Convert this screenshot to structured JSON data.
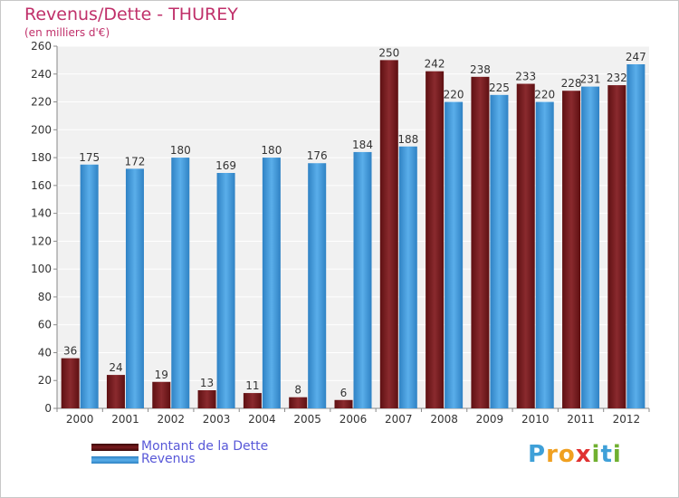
{
  "title": "Revenus/Dette - THUREY",
  "subtitle": "(en milliers d'€)",
  "legend": {
    "items": [
      {
        "label": "Montant de la Dette",
        "color": "#7a1b1f"
      },
      {
        "label": "Revenus",
        "color": "#3a95d8"
      }
    ],
    "placement": "bottom-left"
  },
  "logo": {
    "letters": [
      "P",
      "r",
      "o",
      "x",
      "i",
      "t",
      "i"
    ],
    "colors": [
      "#3fa0d8",
      "#f0a020",
      "#f0a020",
      "#e03030",
      "#70b030",
      "#3fa0d8",
      "#70b030"
    ]
  },
  "colors": {
    "dette": "#7a1b1f",
    "revenus": "#3a95d8",
    "plot_bg": "#f1f1f1",
    "grid": "#ffffff",
    "text_accent": "#c0306a"
  },
  "chart_data": {
    "type": "bar",
    "title": "Revenus/Dette - THUREY",
    "ylabel": "(en milliers d'€)",
    "categories": [
      "2000",
      "2001",
      "2002",
      "2003",
      "2004",
      "2005",
      "2006",
      "2007",
      "2008",
      "2009",
      "2010",
      "2011",
      "2012"
    ],
    "series": [
      {
        "name": "Montant de la Dette",
        "values": [
          36,
          24,
          19,
          13,
          11,
          8,
          6,
          250,
          242,
          238,
          233,
          228,
          232
        ]
      },
      {
        "name": "Revenus",
        "values": [
          175,
          172,
          180,
          169,
          180,
          176,
          184,
          188,
          220,
          225,
          220,
          231,
          247
        ]
      }
    ],
    "ylim": [
      0,
      260
    ],
    "yticks": [
      0,
      20,
      40,
      60,
      80,
      100,
      120,
      140,
      160,
      180,
      200,
      220,
      240,
      260
    ],
    "grid": true,
    "legend_position": "bottom-left"
  }
}
